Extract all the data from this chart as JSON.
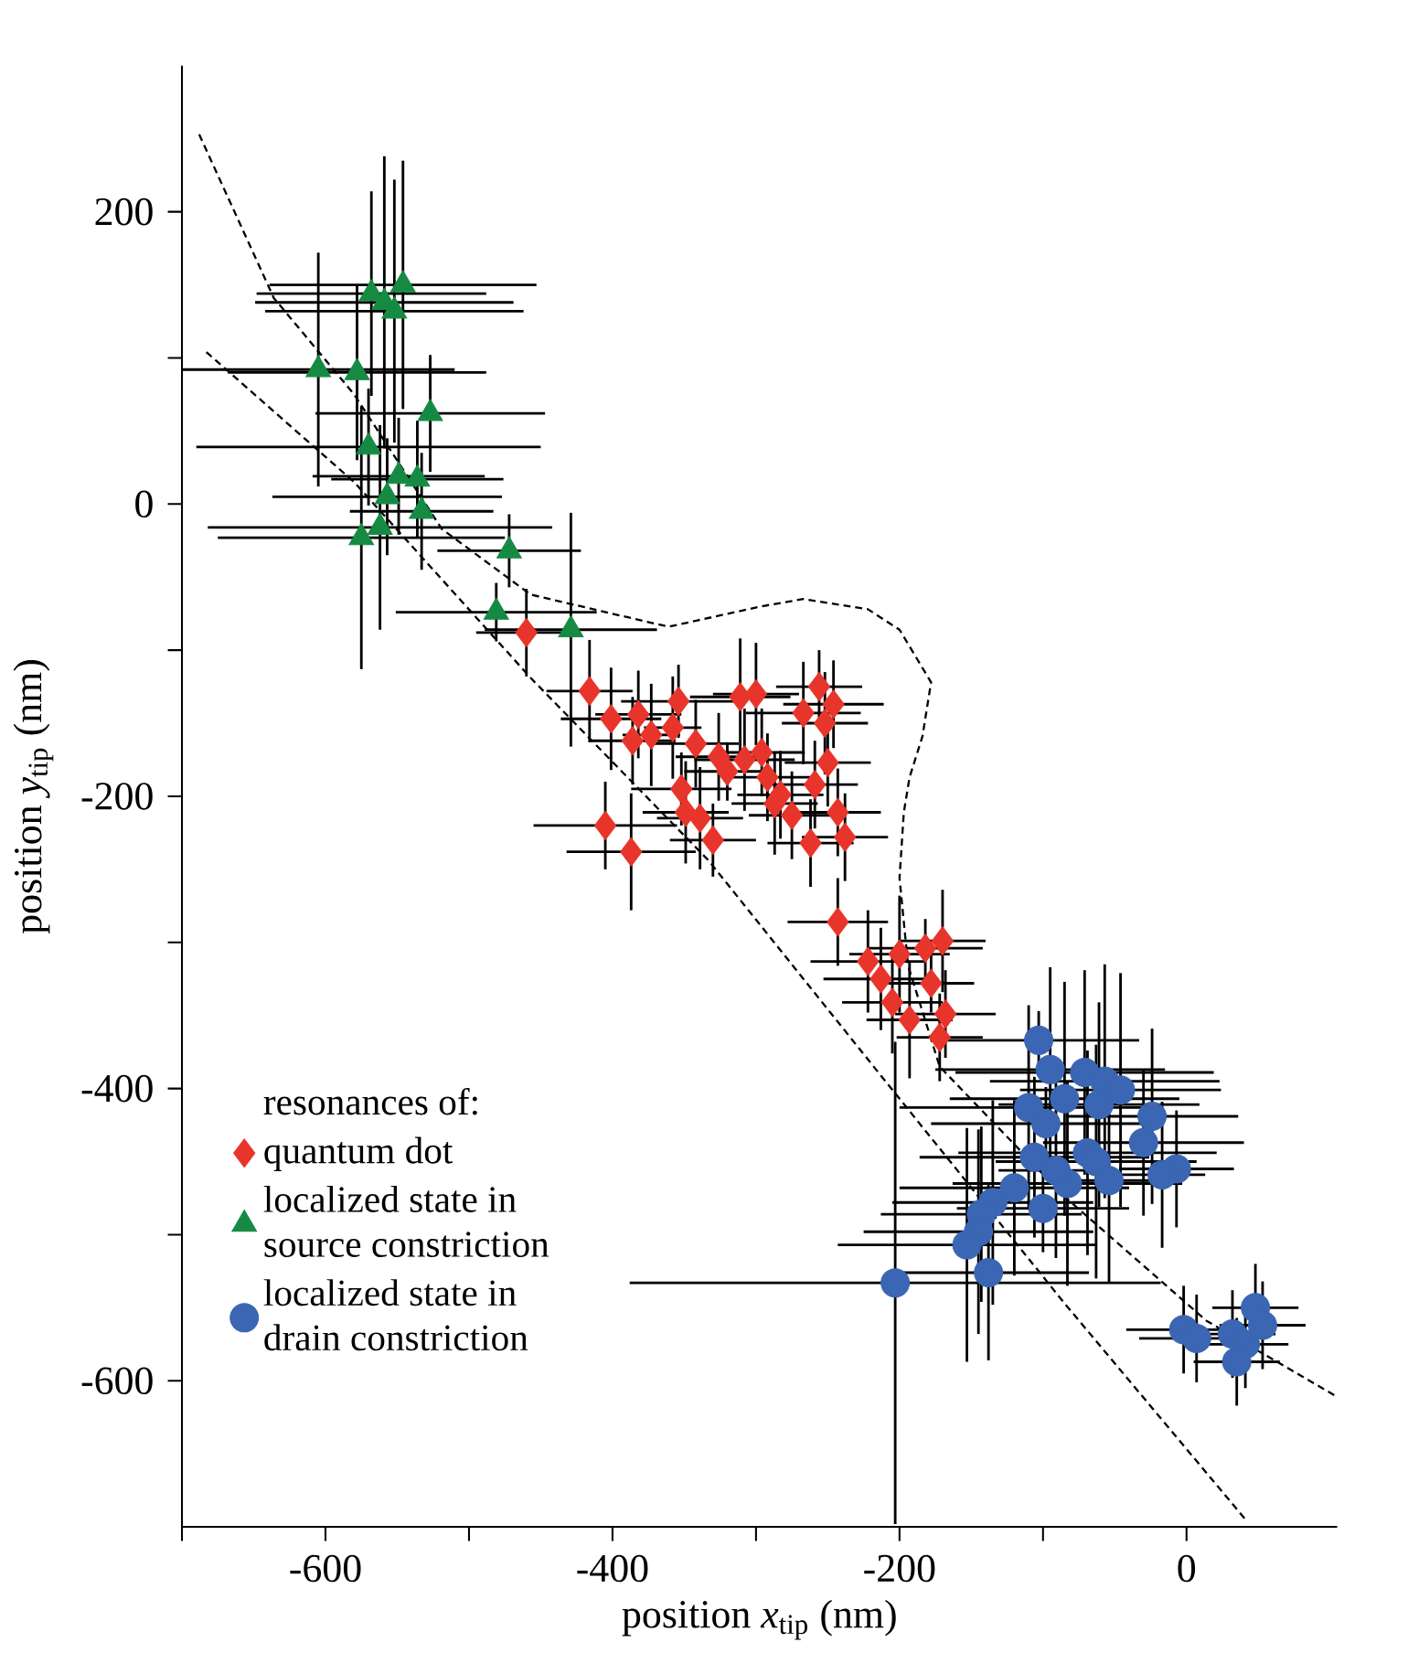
{
  "chart_data": {
    "type": "scatter",
    "xlabel": "position *x*$_{tip}$ (nm)",
    "ylabel": "position *y*$_{tip}$ (nm)",
    "legend_title": "resonances of:",
    "legend": "bottom left",
    "xlim": [
      -700,
      105
    ],
    "ylim": [
      -700,
      300
    ],
    "xticks": [
      {
        "value": -700,
        "label": null
      },
      -600,
      {
        "value": -500,
        "label": null
      },
      -400,
      {
        "value": -300,
        "label": null
      },
      -200,
      {
        "value": -100,
        "label": null
      },
      0
    ],
    "yticks": [
      -600,
      {
        "value": -500,
        "label": null
      },
      -400,
      {
        "value": -300,
        "label": null
      },
      -200,
      {
        "value": -100,
        "label": null
      },
      0,
      {
        "value": 100,
        "label": null
      },
      200
    ],
    "series": [
      {
        "name": "quantum dot",
        "type": "scatter",
        "marker": "diamond",
        "color": "#e8352b",
        "x": [
          -460,
          -416,
          -401,
          -382,
          -386,
          -373,
          -354,
          -358,
          -342,
          -326,
          -320,
          -311,
          -300,
          -308,
          -296,
          -292,
          -283,
          -275,
          -287,
          -267,
          -256,
          -246,
          -252,
          -250,
          -259,
          -243,
          -238,
          -262,
          -352,
          -349,
          -339,
          -330,
          -405,
          -387,
          -243,
          -222,
          -213,
          -200,
          -205,
          -193,
          -182,
          -170,
          -178,
          -168,
          -172
        ],
        "values": [
          -88,
          -128,
          -147,
          -144,
          -162,
          -158,
          -135,
          -153,
          -164,
          -173,
          -183,
          -132,
          -130,
          -175,
          -170,
          -187,
          -199,
          -213,
          -205,
          -143,
          -125,
          -137,
          -150,
          -177,
          -192,
          -211,
          -228,
          -232,
          -195,
          -211,
          -215,
          -230,
          -220,
          -238,
          -286,
          -313,
          -325,
          -308,
          -341,
          -353,
          -304,
          -299,
          -328,
          -349,
          -365
        ],
        "xerrors": [
          35,
          30,
          35,
          30,
          30,
          20,
          40,
          20,
          30,
          30,
          30,
          35,
          30,
          35,
          30,
          30,
          30,
          30,
          30,
          40,
          30,
          35,
          30,
          30,
          30,
          30,
          30,
          30,
          35,
          30,
          30,
          30,
          50,
          45,
          35,
          40,
          40,
          35,
          35,
          30,
          40,
          30,
          30,
          35,
          30
        ],
        "errors": [
          30,
          35,
          35,
          30,
          30,
          35,
          25,
          35,
          30,
          30,
          20,
          40,
          35,
          35,
          30,
          30,
          30,
          30,
          35,
          35,
          25,
          30,
          35,
          30,
          30,
          30,
          30,
          30,
          25,
          35,
          35,
          25,
          30,
          40,
          30,
          35,
          35,
          40,
          35,
          40,
          20,
          35,
          20,
          30,
          30
        ]
      },
      {
        "name": "localized state in source constriction",
        "type": "scatter",
        "marker": "triangle",
        "color": "#168a43",
        "x": [
          -568,
          -559,
          -552,
          -546,
          -605,
          -578,
          -527,
          -570,
          -549,
          -536,
          -557,
          -533,
          -562,
          -575,
          -472,
          -481,
          -429
        ],
        "values": [
          144,
          138,
          132,
          150,
          92,
          90,
          62,
          39,
          19,
          17,
          5,
          -5,
          -16,
          -23,
          -32,
          -74,
          -86
        ],
        "xerrors": [
          80,
          90,
          90,
          93,
          95,
          90,
          80,
          120,
          60,
          60,
          80,
          50,
          120,
          100,
          50,
          70,
          60
        ],
        "errors": [
          70,
          100,
          90,
          85,
          80,
          60,
          40,
          40,
          40,
          40,
          40,
          40,
          70,
          90,
          25,
          20,
          80
        ]
      },
      {
        "name": "localized state in drain constriction",
        "type": "scatter",
        "marker": "circle",
        "color": "#3b66b3",
        "x": [
          -103,
          -95,
          -71,
          -57,
          -46,
          -110,
          -98,
          -85,
          -61,
          -24,
          -30,
          -106,
          -69,
          -63,
          -54,
          -83,
          -91,
          -120,
          -135,
          -143,
          -100,
          -7,
          -17,
          -145,
          -153,
          -138,
          -203,
          -2,
          7,
          32,
          41,
          48,
          53,
          35
        ],
        "values": [
          -367,
          -387,
          -389,
          -395,
          -401,
          -413,
          -424,
          -407,
          -411,
          -419,
          -437,
          -447,
          -444,
          -450,
          -463,
          -465,
          -456,
          -468,
          -478,
          -486,
          -482,
          -455,
          -459,
          -498,
          -507,
          -526,
          -533,
          -565,
          -571,
          -568,
          -575,
          -550,
          -562,
          -587
        ],
        "xerrors": [
          70,
          80,
          90,
          80,
          70,
          90,
          80,
          80,
          70,
          60,
          70,
          80,
          90,
          70,
          30,
          80,
          40,
          80,
          70,
          70,
          60,
          40,
          30,
          80,
          90,
          70,
          185,
          40,
          40,
          30,
          30,
          30,
          30,
          30
        ],
        "errors": [
          20,
          70,
          70,
          80,
          80,
          70,
          25,
          80,
          70,
          60,
          50,
          55,
          70,
          80,
          70,
          70,
          60,
          60,
          70,
          60,
          30,
          40,
          50,
          70,
          80,
          60,
          165,
          30,
          30,
          30,
          30,
          30,
          30,
          30
        ]
      },
      {
        "type": "line",
        "line_style": "dashed",
        "color": "#000000",
        "x": [
          -688,
          -636,
          -580,
          -519,
          -457,
          -361,
          -296,
          -267,
          -222,
          -200,
          -178,
          -184,
          -193,
          -197,
          -200,
          -194,
          -172,
          -85,
          14,
          105
        ],
        "values": [
          253,
          141,
          75,
          -17,
          -62,
          -84,
          -70,
          -65,
          -72,
          -86,
          -122,
          -159,
          -187,
          -211,
          -256,
          -316,
          -385,
          -474,
          -559,
          -611
        ]
      },
      {
        "type": "line",
        "line_style": "dashed",
        "color": "#000000",
        "x": [
          -683,
          -580,
          -457,
          -333,
          -218,
          -85,
          42
        ],
        "values": [
          104,
          15,
          -119,
          -244,
          -385,
          -547,
          -696
        ]
      }
    ]
  }
}
